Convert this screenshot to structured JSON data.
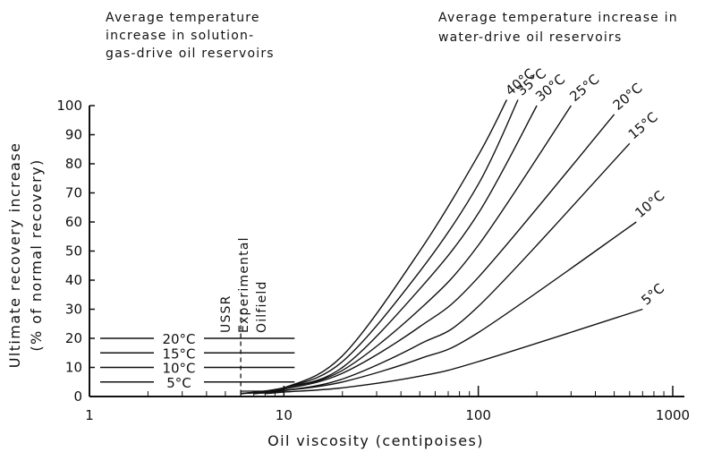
{
  "chart_data": {
    "type": "line",
    "xlabel": "Oil viscosity (centipoises)",
    "ylabel": "Ultimate recovery increase",
    "ylabel_sub": "(% of normal recovery)",
    "x_scale": "log",
    "xlim": [
      1,
      1000
    ],
    "ylim": [
      0,
      100
    ],
    "x_ticks": [
      1,
      10,
      100,
      1000
    ],
    "x_tick_labels": [
      "1",
      "10",
      "100",
      "1000"
    ],
    "y_ticks": [
      0,
      10,
      20,
      30,
      40,
      50,
      60,
      70,
      80,
      90,
      100
    ],
    "y_tick_labels": [
      "0",
      "10",
      "20",
      "30",
      "40",
      "50",
      "60",
      "70",
      "80",
      "90",
      "100"
    ],
    "grid": false,
    "annotations": {
      "left_title": [
        "Average temperature",
        "increase in solution-",
        "gas-drive oil reservoirs"
      ],
      "right_title": [
        "Average temperature increase in",
        "water-drive oil reservoirs"
      ],
      "field_label": [
        "USSR",
        "Experimental",
        "Oilfield"
      ],
      "field_viscosity": 6
    },
    "solution_gas_series": [
      {
        "name": "5°C",
        "x": [
          1,
          10
        ],
        "y": [
          5,
          5
        ]
      },
      {
        "name": "10°C",
        "x": [
          1,
          10
        ],
        "y": [
          10,
          10
        ]
      },
      {
        "name": "15°C",
        "x": [
          1,
          10
        ],
        "y": [
          15,
          15
        ]
      },
      {
        "name": "20°C",
        "x": [
          1,
          10
        ],
        "y": [
          20,
          20
        ]
      }
    ],
    "water_drive_series": [
      {
        "name": "40°C",
        "x": [
          6,
          10,
          20,
          50,
          100,
          140
        ],
        "y": [
          1,
          3,
          14,
          50,
          83,
          102
        ]
      },
      {
        "name": "35°C",
        "x": [
          6,
          10,
          20,
          50,
          100,
          160
        ],
        "y": [
          1,
          3,
          12,
          43,
          73,
          102
        ]
      },
      {
        "name": "30°C",
        "x": [
          6,
          10,
          20,
          50,
          100,
          200
        ],
        "y": [
          1,
          3,
          10,
          37,
          63,
          100
        ]
      },
      {
        "name": "25°C",
        "x": [
          6,
          10,
          20,
          50,
          100,
          300
        ],
        "y": [
          1,
          3,
          9,
          30,
          52,
          100
        ]
      },
      {
        "name": "20°C",
        "x": [
          7,
          10,
          20,
          50,
          100,
          500
        ],
        "y": [
          1,
          2.5,
          8,
          24,
          41,
          97
        ]
      },
      {
        "name": "15°C",
        "x": [
          7,
          10,
          20,
          50,
          100,
          600
        ],
        "y": [
          1,
          2,
          6,
          18,
          31,
          87
        ]
      },
      {
        "name": "10°C",
        "x": [
          7,
          10,
          20,
          50,
          100,
          650
        ],
        "y": [
          1,
          2,
          5,
          13,
          22,
          60
        ]
      },
      {
        "name": "5°C",
        "x": [
          8,
          10,
          20,
          50,
          100,
          700
        ],
        "y": [
          1,
          1.5,
          3,
          7,
          12,
          30
        ]
      }
    ]
  }
}
